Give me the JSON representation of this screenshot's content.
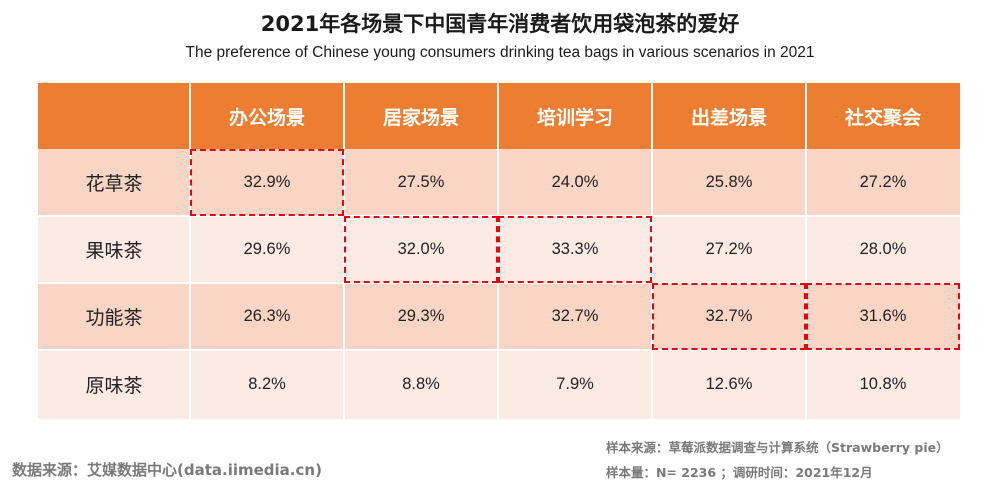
{
  "title": "2021年各场景下中国青年消费者饮用袋泡茶的爱好",
  "subtitle": "The preference of Chinese young consumers drinking tea bags in various scenarios in 2021",
  "colors": {
    "header_bg": "#ed7d31",
    "row_dark": "#f8d5c4",
    "row_light": "#fcebe4",
    "highlight": "#e60012"
  },
  "chart_data": {
    "type": "table",
    "columns": [
      "办公场景",
      "居家场景",
      "培训学习",
      "出差场景",
      "社交聚会"
    ],
    "rows": [
      {
        "label": "花草茶",
        "values": [
          "32.9%",
          "27.5%",
          "24.0%",
          "25.8%",
          "27.2%"
        ]
      },
      {
        "label": "果味茶",
        "values": [
          "29.6%",
          "32.0%",
          "33.3%",
          "27.2%",
          "28.0%"
        ]
      },
      {
        "label": "功能茶",
        "values": [
          "26.3%",
          "29.3%",
          "32.7%",
          "32.7%",
          "31.6%"
        ]
      },
      {
        "label": "原味茶",
        "values": [
          "8.2%",
          "8.8%",
          "7.9%",
          "12.6%",
          "10.8%"
        ]
      }
    ],
    "highlighted_cells": [
      [
        0,
        0
      ],
      [
        1,
        1
      ],
      [
        1,
        2
      ],
      [
        2,
        3
      ],
      [
        2,
        4
      ]
    ]
  },
  "footer": {
    "source": "数据来源：艾媒数据中心(data.iimedia.cn)",
    "sample_source": "样本来源：草莓派数据调查与计算系统（Strawberry  pie）",
    "sample_size": "样本量：N= 2236 ；调研时间：2021年12月"
  }
}
